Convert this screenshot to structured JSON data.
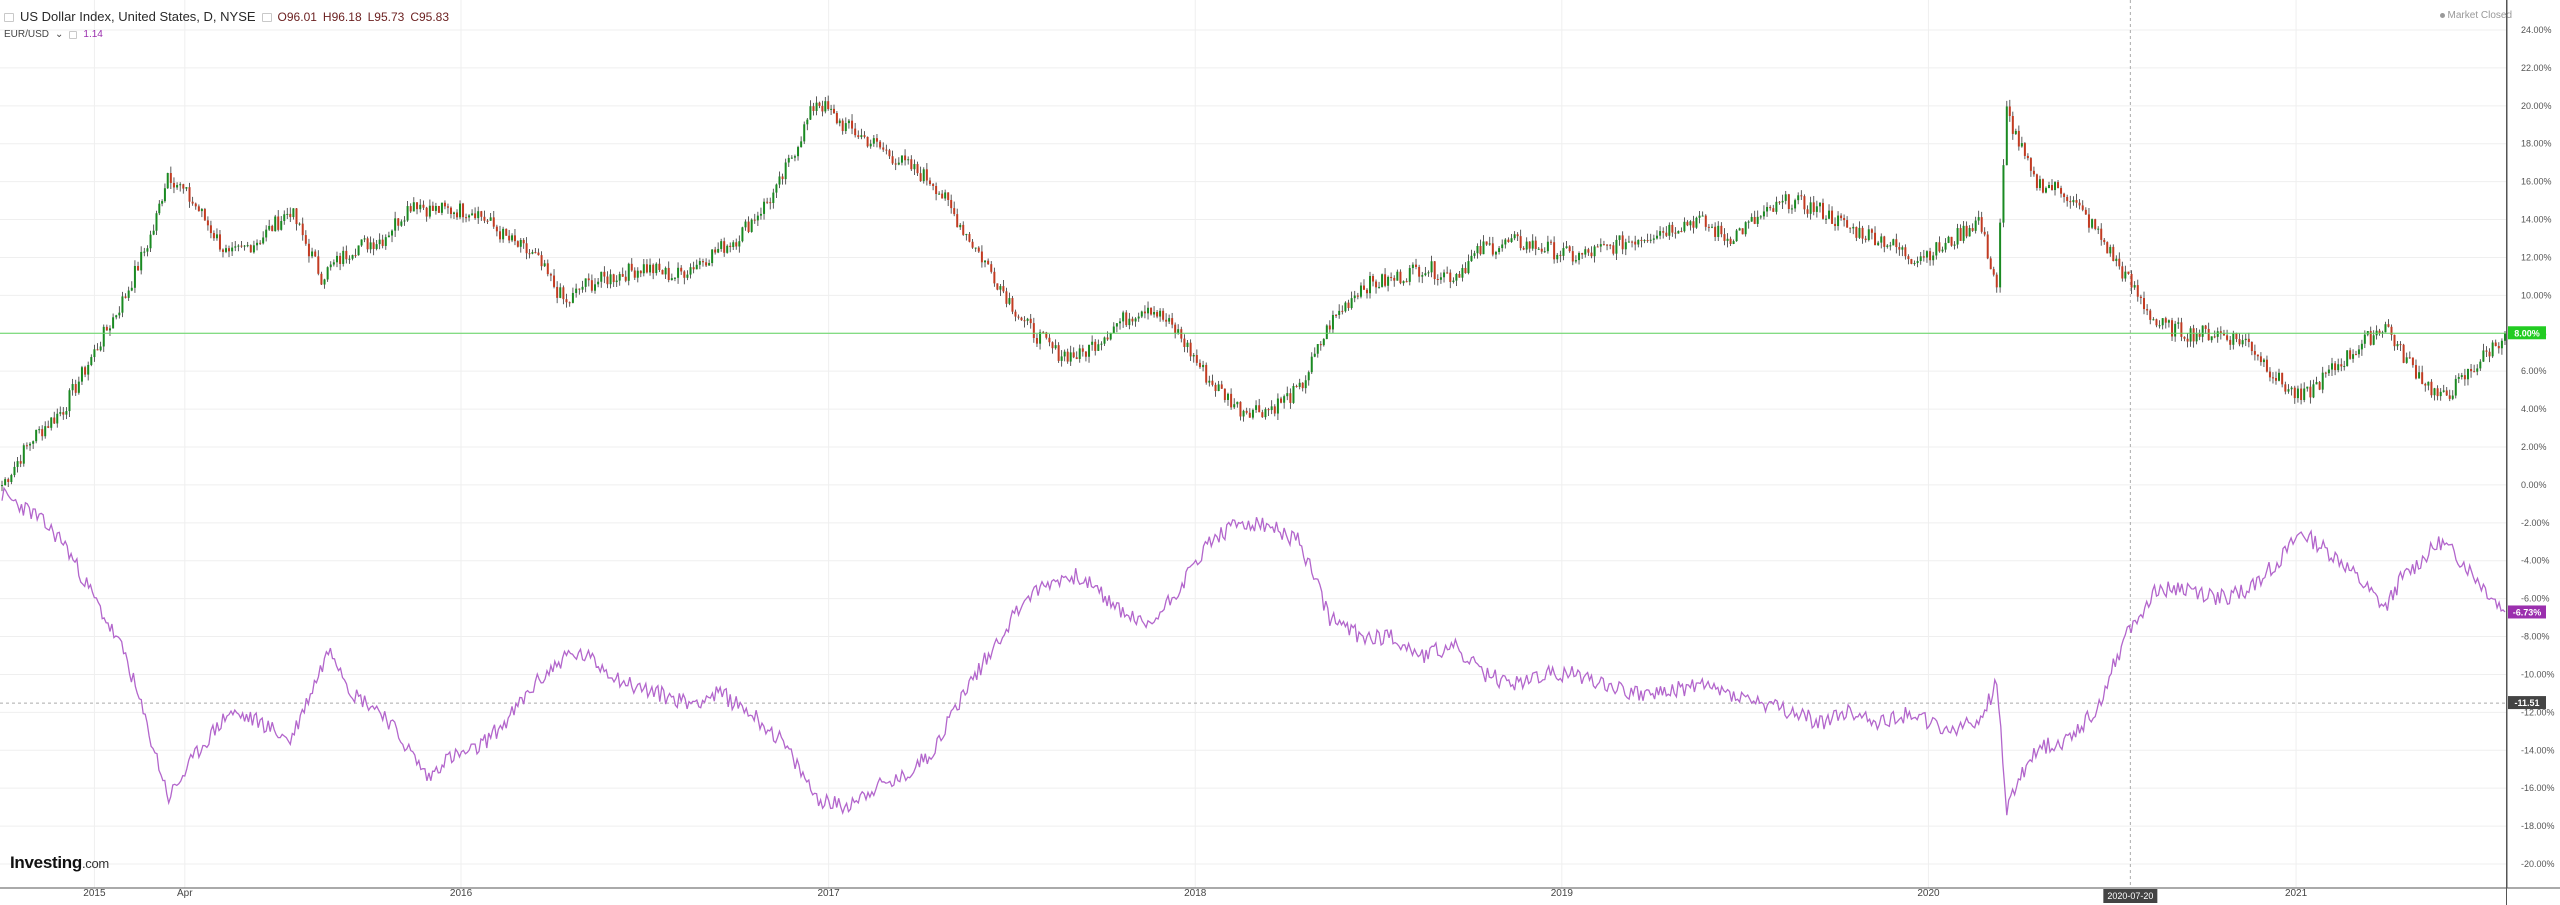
{
  "header": {
    "symbol_title": "US Dollar Index, United States, D, NYSE",
    "ohlc": {
      "open": "O96.01",
      "high": "H96.18",
      "low": "L95.73",
      "close": "C95.83"
    },
    "compare_label": "EUR/USD",
    "compare_value": "1.14",
    "market_status": "Market Closed"
  },
  "branding": {
    "name": "Investing",
    "suffix": ".com"
  },
  "colors": {
    "up": "#1a8a22",
    "down": "#c23b22",
    "wick": "#333333",
    "compare_line": "#b366cc",
    "current_line": "#5fd35f",
    "current_badge": "#22cc22",
    "compare_badge": "#9b2fae",
    "crosshair_badge": "#444444",
    "grid": "#efefef"
  },
  "chart_data": {
    "type": "line",
    "title": "US Dollar Index, United States, D, NYSE",
    "y_unit": "percent change",
    "ylim": [
      -20,
      24
    ],
    "grid": true,
    "y_ticks": [
      "24.00%",
      "22.00%",
      "20.00%",
      "18.00%",
      "16.00%",
      "14.00%",
      "12.00%",
      "10.00%",
      "8.00%",
      "6.00%",
      "4.00%",
      "2.00%",
      "0.00%",
      "-2.00%",
      "-4.00%",
      "-6.00%",
      "-8.00%",
      "-10.00%",
      "-12.00%",
      "-14.00%",
      "-16.00%",
      "-18.00%",
      "-20.00%"
    ],
    "x_ticks": [
      {
        "label": "2015",
        "x": "2015-01-01"
      },
      {
        "label": "Apr",
        "x": "2015-04-01"
      },
      {
        "label": "2016",
        "x": "2016-01-01"
      },
      {
        "label": "2017",
        "x": "2017-01-01"
      },
      {
        "label": "2018",
        "x": "2018-01-01"
      },
      {
        "label": "2019",
        "x": "2019-01-01"
      },
      {
        "label": "2020",
        "x": "2020-01-01"
      },
      {
        "label": "2021",
        "x": "2021-01-01"
      }
    ],
    "xlim": [
      "2014-09-29",
      "2021-07-30"
    ],
    "series": [
      {
        "name": "US Dollar Index",
        "style": "candlestick",
        "x": [
          "2014-10-01",
          "2014-11-01",
          "2014-12-01",
          "2015-01-01",
          "2015-02-01",
          "2015-03-01",
          "2015-03-15",
          "2015-04-15",
          "2015-05-15",
          "2015-06-15",
          "2015-07-15",
          "2015-08-15",
          "2015-09-15",
          "2015-10-15",
          "2015-11-15",
          "2015-12-01",
          "2016-01-15",
          "2016-02-15",
          "2016-03-15",
          "2016-04-15",
          "2016-05-01",
          "2016-06-01",
          "2016-07-01",
          "2016-08-01",
          "2016-09-01",
          "2016-10-01",
          "2016-11-10",
          "2016-12-20",
          "2017-01-15",
          "2017-02-15",
          "2017-03-15",
          "2017-04-15",
          "2017-05-15",
          "2017-06-15",
          "2017-07-15",
          "2017-08-15",
          "2017-09-08",
          "2017-10-15",
          "2017-11-15",
          "2017-12-15",
          "2018-01-15",
          "2018-02-15",
          "2018-03-15",
          "2018-04-15",
          "2018-05-15",
          "2018-06-15",
          "2018-07-15",
          "2018-08-15",
          "2018-09-15",
          "2018-10-15",
          "2018-11-15",
          "2018-12-15",
          "2019-01-15",
          "2019-02-15",
          "2019-03-15",
          "2019-04-15",
          "2019-05-15",
          "2019-06-15",
          "2019-07-15",
          "2019-08-15",
          "2019-09-15",
          "2019-10-15",
          "2019-11-15",
          "2019-12-15",
          "2020-01-15",
          "2020-02-20",
          "2020-03-09",
          "2020-03-19",
          "2020-04-15",
          "2020-05-15",
          "2020-06-15",
          "2020-07-15",
          "2020-08-15",
          "2020-09-15",
          "2020-10-15",
          "2020-11-15",
          "2020-12-15",
          "2021-01-06",
          "2021-02-15",
          "2021-03-31",
          "2021-04-15",
          "2021-05-25",
          "2021-06-15",
          "2021-07-28"
        ],
        "y": [
          0.0,
          2.5,
          4.0,
          7.0,
          10.0,
          13.5,
          16.5,
          14.5,
          12.0,
          13.0,
          14.5,
          11.0,
          12.5,
          13.0,
          15.0,
          14.5,
          14.5,
          13.0,
          12.0,
          9.5,
          10.5,
          11.0,
          11.5,
          11.0,
          12.0,
          13.0,
          15.5,
          20.3,
          19.0,
          18.0,
          17.0,
          16.0,
          13.5,
          11.0,
          8.5,
          7.0,
          6.8,
          8.5,
          9.5,
          8.0,
          5.5,
          4.0,
          4.0,
          5.0,
          8.5,
          10.5,
          10.8,
          11.5,
          11.0,
          12.5,
          12.8,
          12.5,
          12.0,
          12.5,
          13.0,
          13.5,
          14.0,
          13.0,
          14.0,
          15.0,
          14.5,
          13.5,
          13.0,
          12.0,
          12.5,
          14.0,
          10.5,
          19.7,
          16.0,
          15.5,
          13.5,
          11.0,
          8.5,
          8.0,
          8.0,
          7.5,
          5.5,
          4.5,
          6.5,
          8.5,
          7.0,
          4.5,
          5.5,
          8.0
        ]
      },
      {
        "name": "EUR/USD",
        "style": "line",
        "x": [
          "2014-10-01",
          "2014-11-01",
          "2014-12-01",
          "2015-01-01",
          "2015-02-01",
          "2015-03-16",
          "2015-04-15",
          "2015-05-15",
          "2015-06-15",
          "2015-07-15",
          "2015-08-24",
          "2015-09-15",
          "2015-10-15",
          "2015-11-30",
          "2015-12-15",
          "2016-01-15",
          "2016-02-15",
          "2016-03-15",
          "2016-04-15",
          "2016-05-03",
          "2016-06-15",
          "2016-07-15",
          "2016-08-15",
          "2016-09-15",
          "2016-10-15",
          "2016-11-15",
          "2016-12-20",
          "2017-01-15",
          "2017-02-15",
          "2017-03-15",
          "2017-04-15",
          "2017-05-15",
          "2017-06-15",
          "2017-07-15",
          "2017-08-15",
          "2017-09-08",
          "2017-10-15",
          "2017-11-15",
          "2017-12-15",
          "2018-01-15",
          "2018-02-15",
          "2018-03-15",
          "2018-04-15",
          "2018-05-15",
          "2018-06-15",
          "2018-07-15",
          "2018-08-15",
          "2018-09-15",
          "2018-10-15",
          "2018-11-15",
          "2018-12-15",
          "2019-01-15",
          "2019-02-15",
          "2019-03-15",
          "2019-04-15",
          "2019-05-15",
          "2019-06-15",
          "2019-07-15",
          "2019-08-15",
          "2019-09-15",
          "2019-10-15",
          "2019-11-15",
          "2019-12-15",
          "2020-01-15",
          "2020-02-20",
          "2020-03-09",
          "2020-03-19",
          "2020-04-15",
          "2020-05-15",
          "2020-06-15",
          "2020-07-15",
          "2020-08-15",
          "2020-09-15",
          "2020-10-15",
          "2020-11-15",
          "2020-12-15",
          "2021-01-06",
          "2021-02-15",
          "2021-03-31",
          "2021-04-15",
          "2021-05-25",
          "2021-06-15",
          "2021-07-28"
        ],
        "y": [
          -0.5,
          -1.5,
          -3.0,
          -6.0,
          -9.0,
          -16.5,
          -14.0,
          -12.0,
          -12.5,
          -13.5,
          -8.5,
          -11.0,
          -12.0,
          -15.5,
          -14.5,
          -14.0,
          -12.5,
          -10.5,
          -9.0,
          -9.0,
          -10.5,
          -11.0,
          -11.5,
          -11.0,
          -12.0,
          -13.5,
          -16.5,
          -17.0,
          -16.0,
          -15.5,
          -14.0,
          -11.0,
          -8.5,
          -6.0,
          -5.0,
          -4.8,
          -6.5,
          -7.5,
          -5.5,
          -3.0,
          -2.0,
          -2.2,
          -3.0,
          -7.0,
          -8.0,
          -8.0,
          -9.0,
          -8.5,
          -10.0,
          -10.5,
          -10.0,
          -10.0,
          -10.5,
          -11.0,
          -11.0,
          -10.5,
          -11.0,
          -11.5,
          -12.0,
          -12.5,
          -12.0,
          -12.5,
          -12.0,
          -13.0,
          -12.5,
          -10.5,
          -17.0,
          -14.0,
          -13.5,
          -12.0,
          -8.0,
          -5.5,
          -5.5,
          -6.0,
          -5.5,
          -4.0,
          -2.5,
          -4.0,
          -6.5,
          -5.0,
          -3.0,
          -4.0,
          -6.7
        ]
      }
    ],
    "price_line_label": "8.00%",
    "compare_badge_label": "-6.73%",
    "crosshair_y_label": "-11.51",
    "crosshair_x_label": "2020-07-20",
    "crosshair_x": "2020-07-20"
  }
}
